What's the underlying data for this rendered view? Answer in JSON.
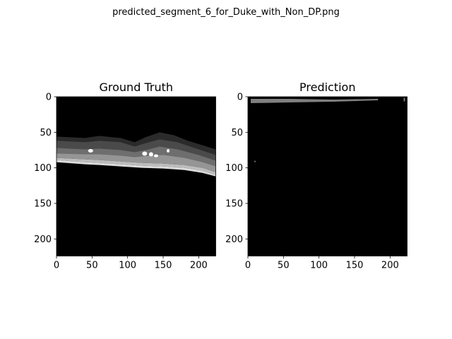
{
  "figure": {
    "suptitle": "predicted_segment_6_for_Duke_with_Non_DP.png"
  },
  "chart_data": [
    {
      "type": "heatmap",
      "title": "Ground Truth",
      "xlim": [
        0,
        224
      ],
      "ylim": [
        224,
        0
      ],
      "xticks": [
        0,
        50,
        100,
        150,
        200
      ],
      "yticks": [
        0,
        50,
        100,
        150,
        200
      ],
      "background": "#000000",
      "bands": [
        {
          "top": [
            [
              0,
              56
            ],
            [
              40,
              58
            ],
            [
              60,
              55
            ],
            [
              90,
              58
            ],
            [
              110,
              64
            ],
            [
              125,
              57
            ],
            [
              145,
              50
            ],
            [
              165,
              54
            ],
            [
              185,
              62
            ],
            [
              205,
              68
            ],
            [
              224,
              74
            ]
          ],
          "bottom": [
            [
              0,
              70
            ],
            [
              40,
              72
            ],
            [
              60,
              70
            ],
            [
              90,
              72
            ],
            [
              110,
              78
            ],
            [
              130,
              72
            ],
            [
              145,
              66
            ],
            [
              170,
              70
            ],
            [
              200,
              80
            ],
            [
              224,
              88
            ]
          ],
          "color": "#2b2b2b"
        },
        {
          "top": [
            [
              0,
              62
            ],
            [
              40,
              64
            ],
            [
              60,
              62
            ],
            [
              90,
              64
            ],
            [
              110,
              70
            ],
            [
              130,
              64
            ],
            [
              145,
              60
            ],
            [
              170,
              64
            ],
            [
              200,
              74
            ],
            [
              224,
              82
            ]
          ],
          "bottom": [
            [
              0,
              76
            ],
            [
              40,
              77
            ],
            [
              60,
              76
            ],
            [
              90,
              78
            ],
            [
              110,
              82
            ],
            [
              130,
              78
            ],
            [
              145,
              74
            ],
            [
              170,
              78
            ],
            [
              200,
              86
            ],
            [
              224,
              94
            ]
          ],
          "color": "#4a4a4a"
        },
        {
          "top": [
            [
              0,
              72
            ],
            [
              40,
              74
            ],
            [
              60,
              73
            ],
            [
              90,
              75
            ],
            [
              110,
              78
            ],
            [
              130,
              74
            ],
            [
              145,
              70
            ],
            [
              170,
              74
            ],
            [
              200,
              82
            ],
            [
              224,
              90
            ]
          ],
          "bottom": [
            [
              0,
              82
            ],
            [
              40,
              83
            ],
            [
              60,
              83
            ],
            [
              90,
              85
            ],
            [
              110,
              88
            ],
            [
              130,
              86
            ],
            [
              150,
              84
            ],
            [
              180,
              88
            ],
            [
              205,
              94
            ],
            [
              224,
              100
            ]
          ],
          "color": "#6e6e6e"
        },
        {
          "top": [
            [
              0,
              80
            ],
            [
              40,
              81
            ],
            [
              60,
              81
            ],
            [
              90,
              83
            ],
            [
              110,
              85
            ],
            [
              130,
              83
            ],
            [
              150,
              82
            ],
            [
              180,
              86
            ],
            [
              205,
              92
            ],
            [
              224,
              98
            ]
          ],
          "bottom": [
            [
              0,
              86
            ],
            [
              40,
              88
            ],
            [
              60,
              89
            ],
            [
              90,
              91
            ],
            [
              120,
              93
            ],
            [
              150,
              94
            ],
            [
              180,
              96
            ],
            [
              205,
              100
            ],
            [
              224,
              106
            ]
          ],
          "color": "#959595"
        },
        {
          "top": [
            [
              0,
              86
            ],
            [
              40,
              88
            ],
            [
              60,
              89
            ],
            [
              90,
              91
            ],
            [
              120,
              93
            ],
            [
              150,
              94
            ],
            [
              180,
              96
            ],
            [
              205,
              100
            ],
            [
              224,
              106
            ]
          ],
          "bottom": [
            [
              0,
              89
            ],
            [
              40,
              92
            ],
            [
              60,
              93
            ],
            [
              90,
              95
            ],
            [
              120,
              97
            ],
            [
              150,
              98
            ],
            [
              180,
              100
            ],
            [
              205,
              104
            ],
            [
              224,
              110
            ]
          ],
          "color": "#bdbdbd"
        },
        {
          "top": [
            [
              0,
              89
            ],
            [
              40,
              92
            ],
            [
              60,
              93
            ],
            [
              90,
              95
            ],
            [
              120,
              97
            ],
            [
              150,
              98
            ],
            [
              180,
              100
            ],
            [
              205,
              104
            ],
            [
              224,
              110
            ]
          ],
          "bottom": [
            [
              0,
              92
            ],
            [
              40,
              95
            ],
            [
              60,
              96
            ],
            [
              90,
              98
            ],
            [
              120,
              100
            ],
            [
              150,
              101
            ],
            [
              180,
              103
            ],
            [
              205,
              107
            ],
            [
              224,
              112
            ]
          ],
          "color": "#dcdcdc"
        }
      ],
      "spots": [
        {
          "x": 48,
          "y": 76,
          "rx": 3.5,
          "ry": 2.5,
          "color": "#ffffff"
        },
        {
          "x": 124,
          "y": 80,
          "rx": 3.5,
          "ry": 3,
          "color": "#ffffff"
        },
        {
          "x": 133,
          "y": 81,
          "rx": 3,
          "ry": 3,
          "color": "#ffffff"
        },
        {
          "x": 140,
          "y": 83,
          "rx": 3,
          "ry": 2,
          "color": "#ffffff"
        },
        {
          "x": 157,
          "y": 76,
          "rx": 2,
          "ry": 2.5,
          "color": "#ffffff"
        }
      ]
    },
    {
      "type": "heatmap",
      "title": "Prediction",
      "xlim": [
        0,
        224
      ],
      "ylim": [
        224,
        0
      ],
      "xticks": [
        0,
        50,
        100,
        150,
        200
      ],
      "yticks": [
        0,
        50,
        100,
        150,
        200
      ],
      "background": "#000000",
      "bands": [
        {
          "top": [
            [
              4,
              3
            ],
            [
              60,
              3
            ],
            [
              120,
              4
            ],
            [
              183,
              3
            ]
          ],
          "bottom": [
            [
              4,
              9
            ],
            [
              60,
              8
            ],
            [
              120,
              7
            ],
            [
              183,
              5
            ]
          ],
          "color": "#808080"
        }
      ],
      "spots": [
        {
          "x": 220,
          "y": 4,
          "rx": 1,
          "ry": 3,
          "color": "#808080"
        },
        {
          "x": 10,
          "y": 91,
          "rx": 1,
          "ry": 1,
          "color": "#808080"
        }
      ]
    }
  ]
}
